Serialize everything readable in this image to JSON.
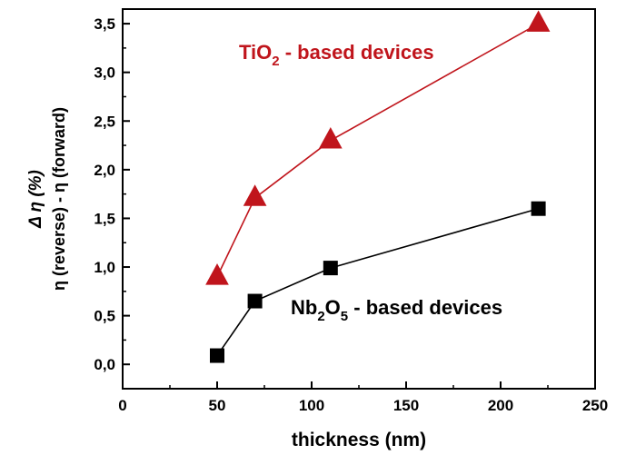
{
  "chart_data": {
    "type": "line",
    "title": "",
    "xlabel": "thickness (nm)",
    "ylabel_line1": "Δ η (%)",
    "ylabel_line2": "η (reverse) - η (forward)",
    "xlim": [
      0,
      250
    ],
    "ylim": [
      -0.25,
      3.65
    ],
    "x_ticks": [
      0,
      50,
      100,
      150,
      200,
      250
    ],
    "x_tick_labels": [
      "0",
      "50",
      "100",
      "150",
      "200",
      "250"
    ],
    "y_ticks": [
      0,
      0.5,
      1.0,
      1.5,
      2.0,
      2.5,
      3.0,
      3.5
    ],
    "y_tick_labels": [
      "0,0",
      "0,5",
      "1,0",
      "1,5",
      "2,0",
      "2,5",
      "3,0",
      "3,5"
    ],
    "grid": false,
    "legend": "none",
    "series": [
      {
        "name": "TiO2 - based devices",
        "marker": "triangle",
        "color": "#c0151c",
        "x": [
          50,
          70,
          110,
          220
        ],
        "y": [
          0.9,
          1.71,
          2.3,
          3.5
        ]
      },
      {
        "name": "Nb2O5 - based devices",
        "marker": "square",
        "color": "#000000",
        "x": [
          50,
          70,
          110,
          220
        ],
        "y": [
          0.09,
          0.65,
          0.99,
          1.6
        ]
      }
    ],
    "annotations": [
      {
        "base": "TiO",
        "sub": "2",
        "rest": " - based devices",
        "color": "#c0151c"
      },
      {
        "base": "Nb",
        "sub": "2",
        "mid": "O",
        "sub2": "5",
        "rest": " - based devices",
        "color": "#000000"
      }
    ]
  }
}
